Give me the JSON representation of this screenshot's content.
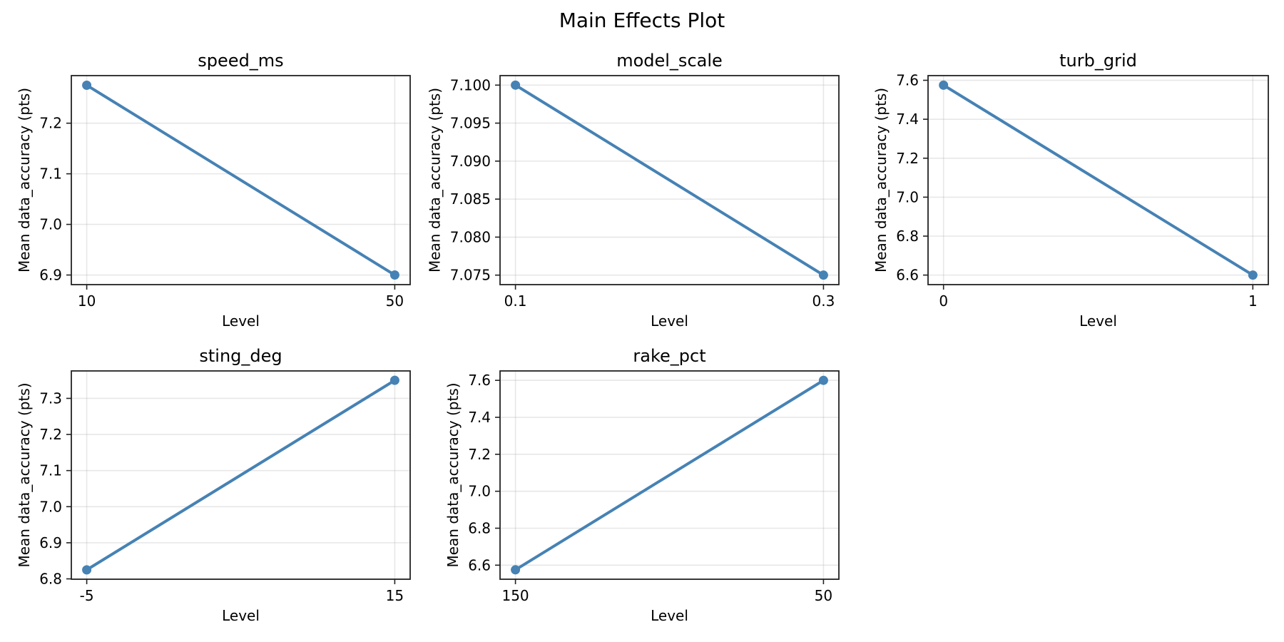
{
  "chart_data": {
    "type": "line",
    "title": "Main Effects Plot",
    "line_color": "#4682b4",
    "grid": true,
    "subplots": [
      {
        "title": "speed_ms",
        "xlabel": "Level",
        "ylabel": "Mean data_accuracy (pts)",
        "categories": [
          "10",
          "50"
        ],
        "values": [
          7.275,
          6.9
        ],
        "yticks": [
          6.9,
          7.0,
          7.1,
          7.2
        ],
        "ytick_labels": [
          "6.9",
          "7.0",
          "7.1",
          "7.2"
        ],
        "ylim": [
          6.881,
          7.294
        ]
      },
      {
        "title": "model_scale",
        "xlabel": "Level",
        "ylabel": "Mean data_accuracy (pts)",
        "categories": [
          "0.1",
          "0.3"
        ],
        "values": [
          7.1,
          7.075
        ],
        "yticks": [
          7.075,
          7.08,
          7.085,
          7.09,
          7.095,
          7.1
        ],
        "ytick_labels": [
          "7.075",
          "7.080",
          "7.085",
          "7.090",
          "7.095",
          "7.100"
        ],
        "ylim": [
          7.07375,
          7.10125
        ]
      },
      {
        "title": "turb_grid",
        "xlabel": "Level",
        "ylabel": "Mean data_accuracy (pts)",
        "categories": [
          "0",
          "1"
        ],
        "values": [
          7.575,
          6.6
        ],
        "yticks": [
          6.6,
          6.8,
          7.0,
          7.2,
          7.4,
          7.6
        ],
        "ytick_labels": [
          "6.6",
          "6.8",
          "7.0",
          "7.2",
          "7.4",
          "7.6"
        ],
        "ylim": [
          6.551,
          7.624
        ]
      },
      {
        "title": "sting_deg",
        "xlabel": "Level",
        "ylabel": "Mean data_accuracy (pts)",
        "categories": [
          "-5",
          "15"
        ],
        "values": [
          6.825,
          7.35
        ],
        "yticks": [
          6.8,
          6.9,
          7.0,
          7.1,
          7.2,
          7.3
        ],
        "ytick_labels": [
          "6.8",
          "6.9",
          "7.0",
          "7.1",
          "7.2",
          "7.3"
        ],
        "ylim": [
          6.799,
          7.376
        ]
      },
      {
        "title": "rake_pct",
        "xlabel": "Level",
        "ylabel": "Mean data_accuracy (pts)",
        "categories": [
          "150",
          "50"
        ],
        "values": [
          6.575,
          7.6
        ],
        "yticks": [
          6.6,
          6.8,
          7.0,
          7.2,
          7.4,
          7.6
        ],
        "ytick_labels": [
          "6.6",
          "6.8",
          "7.0",
          "7.2",
          "7.4",
          "7.6"
        ],
        "ylim": [
          6.524,
          7.651
        ]
      }
    ]
  }
}
